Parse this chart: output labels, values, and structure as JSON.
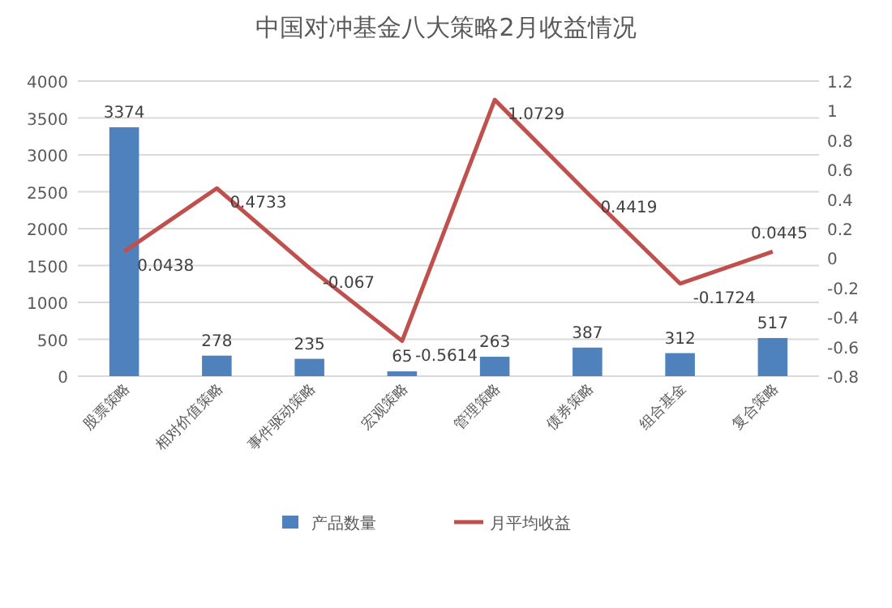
{
  "chart_data": {
    "type": "bar",
    "title": "中国对冲基金八大策略2月收益情况",
    "categories": [
      "股票策略",
      "相对价值策略",
      "事件驱动策略",
      "宏观策略",
      "管理策略",
      "债券策略",
      "组合基金",
      "复合策略"
    ],
    "series": [
      {
        "name": "产品数量",
        "color": "#4f81bd",
        "values": [
          3374,
          278,
          235,
          65,
          263,
          387,
          312,
          517
        ]
      },
      {
        "name": "月平均收益",
        "type": "line",
        "axis": "y2",
        "color": "#c0504d",
        "values": [
          0.0438,
          0.4733,
          -0.067,
          -0.5614,
          1.0729,
          0.4419,
          -0.1724,
          0.0445
        ]
      }
    ],
    "ylim": [
      0,
      4000
    ],
    "yticks": [
      0,
      500,
      1000,
      1500,
      2000,
      2500,
      3000,
      3500,
      4000
    ],
    "y2lim": [
      -0.8,
      1.2
    ],
    "y2ticks": [
      -0.8,
      -0.6,
      -0.4,
      -0.2,
      0,
      0.2,
      0.4,
      0.6,
      0.8,
      1,
      1.2
    ],
    "grid": "y",
    "legend": "bottom",
    "data_labels": true
  }
}
